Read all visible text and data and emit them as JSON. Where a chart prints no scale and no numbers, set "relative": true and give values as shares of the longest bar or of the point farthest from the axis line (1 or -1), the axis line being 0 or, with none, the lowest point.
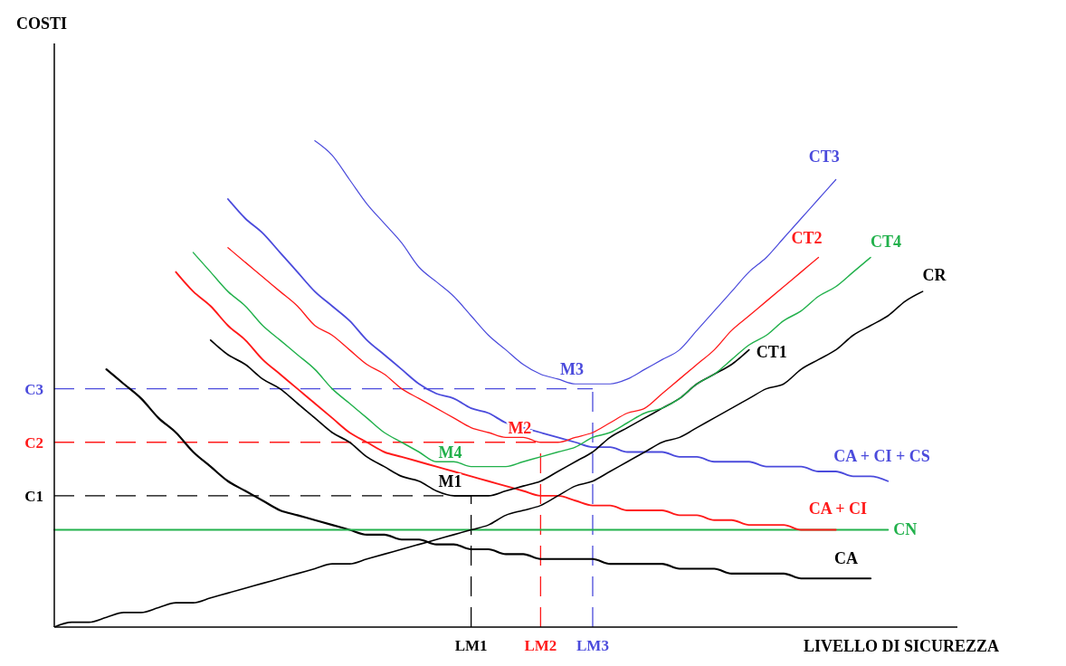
{
  "chart_data": {
    "type": "line",
    "relative": true,
    "marker": "none",
    "line_style": "solid",
    "xlabel": "LIVELLO DI SICUREZZA",
    "categories": [
      null,
      null,
      null,
      null,
      null,
      null,
      null,
      null,
      null,
      null,
      null,
      null,
      null,
      null,
      null,
      null,
      null,
      null,
      null,
      null,
      null,
      null,
      null,
      null,
      "LM1",
      null,
      null,
      null,
      "LM2",
      null,
      null,
      "LM3",
      null,
      null,
      null,
      null,
      null,
      null,
      null,
      null,
      null,
      null,
      null,
      null,
      null,
      null,
      null,
      null,
      null,
      null,
      null,
      null,
      null
    ],
    "series": [
      {
        "name": "CT3",
        "color": "#4b4bdc",
        "values": [
          null,
          null,
          null,
          null,
          null,
          null,
          null,
          null,
          null,
          null,
          null,
          null,
          null,
          null,
          null,
          1.0,
          0.97,
          0.92,
          0.87,
          0.83,
          0.79,
          0.74,
          0.71,
          0.68,
          0.64,
          0.6,
          0.57,
          0.54,
          0.52,
          0.51,
          0.5,
          0.5,
          0.5,
          0.51,
          0.53,
          0.55,
          0.57,
          0.61,
          0.65,
          0.69,
          0.73,
          0.76,
          0.8,
          0.84,
          0.88,
          0.92,
          null,
          null,
          null,
          null,
          null,
          null,
          null
        ]
      },
      {
        "name": "CT2",
        "color": "#ff1a1a",
        "values": [
          null,
          null,
          null,
          null,
          null,
          null,
          null,
          null,
          null,
          null,
          0.78,
          0.75,
          0.72,
          0.69,
          0.66,
          0.62,
          0.6,
          0.57,
          0.54,
          0.52,
          0.49,
          0.47,
          0.45,
          0.43,
          0.41,
          0.4,
          0.39,
          0.39,
          0.38,
          0.38,
          0.39,
          0.4,
          0.42,
          0.44,
          0.45,
          0.48,
          0.51,
          0.54,
          0.57,
          0.61,
          0.64,
          0.67,
          0.7,
          0.73,
          0.76,
          null,
          null,
          null,
          null,
          null,
          null,
          null,
          null
        ]
      },
      {
        "name": "CT4",
        "color": "#22b14c",
        "values": [
          null,
          null,
          null,
          null,
          null,
          null,
          null,
          null,
          0.77,
          0.73,
          0.69,
          0.66,
          0.62,
          0.59,
          0.56,
          0.53,
          0.49,
          0.46,
          0.43,
          0.4,
          0.38,
          0.36,
          0.34,
          0.34,
          0.33,
          0.33,
          0.33,
          0.34,
          0.35,
          0.36,
          0.37,
          0.39,
          0.4,
          0.42,
          0.44,
          0.45,
          0.47,
          0.5,
          0.52,
          0.55,
          0.58,
          0.6,
          0.63,
          0.65,
          0.68,
          0.7,
          0.73,
          0.76,
          null,
          null,
          null,
          null,
          null
        ]
      },
      {
        "name": "CR",
        "color": "#000000",
        "values": [
          0,
          0.01,
          0.01,
          0.02,
          0.03,
          0.03,
          0.04,
          0.05,
          0.05,
          0.06,
          0.07,
          0.08,
          0.09,
          0.1,
          0.11,
          0.12,
          0.13,
          0.13,
          0.14,
          0.15,
          0.16,
          0.17,
          0.18,
          0.19,
          0.2,
          0.21,
          0.23,
          0.24,
          0.25,
          0.27,
          0.29,
          0.3,
          0.32,
          0.34,
          0.36,
          0.38,
          0.39,
          0.41,
          0.43,
          0.45,
          0.47,
          0.49,
          0.5,
          0.53,
          0.55,
          0.57,
          0.6,
          0.62,
          0.64,
          0.67,
          0.69,
          null,
          null
        ]
      },
      {
        "name": "CT1",
        "color": "#000000",
        "values": [
          null,
          null,
          null,
          null,
          null,
          null,
          null,
          null,
          null,
          0.59,
          0.56,
          0.54,
          0.51,
          0.49,
          0.46,
          0.43,
          0.4,
          0.38,
          0.35,
          0.33,
          0.31,
          0.3,
          0.28,
          0.27,
          0.27,
          0.27,
          0.28,
          0.29,
          0.3,
          0.32,
          0.34,
          0.36,
          0.39,
          0.41,
          0.43,
          0.45,
          0.47,
          0.5,
          0.52,
          0.54,
          0.57,
          null,
          null,
          null,
          null,
          null,
          null,
          null,
          null,
          null,
          null,
          null,
          null
        ]
      },
      {
        "name": "CA + CI + CS",
        "color": "#4b4bdc",
        "values": [
          null,
          null,
          null,
          null,
          null,
          null,
          null,
          null,
          null,
          null,
          0.88,
          0.84,
          0.81,
          0.77,
          0.73,
          0.69,
          0.66,
          0.63,
          0.59,
          0.56,
          0.53,
          0.5,
          0.48,
          0.47,
          0.45,
          0.44,
          0.42,
          0.41,
          0.4,
          0.39,
          0.38,
          0.37,
          0.37,
          0.36,
          0.36,
          0.36,
          0.35,
          0.35,
          0.34,
          0.34,
          0.34,
          0.33,
          0.33,
          0.33,
          0.32,
          0.32,
          0.31,
          0.31,
          0.3,
          null,
          null,
          null,
          null
        ]
      },
      {
        "name": "CA + CI",
        "color": "#ff1a1a",
        "values": [
          null,
          null,
          null,
          null,
          null,
          null,
          null,
          0.73,
          0.69,
          0.66,
          0.62,
          0.59,
          0.55,
          0.52,
          0.49,
          0.46,
          0.43,
          0.4,
          0.38,
          0.36,
          0.35,
          0.34,
          0.33,
          0.32,
          0.31,
          0.3,
          0.29,
          0.28,
          0.27,
          0.27,
          0.26,
          0.25,
          0.25,
          0.24,
          0.24,
          0.24,
          0.23,
          0.23,
          0.22,
          0.22,
          0.21,
          0.21,
          0.21,
          0.2,
          0.2,
          0.2,
          null,
          null,
          null,
          null,
          null,
          null,
          null
        ]
      },
      {
        "name": "CN",
        "color": "#22b14c",
        "values": [
          0.2,
          0.2,
          0.2,
          0.2,
          0.2,
          0.2,
          0.2,
          0.2,
          0.2,
          0.2,
          0.2,
          0.2,
          0.2,
          0.2,
          0.2,
          0.2,
          0.2,
          0.2,
          0.2,
          0.2,
          0.2,
          0.2,
          0.2,
          0.2,
          0.2,
          0.2,
          0.2,
          0.2,
          0.2,
          0.2,
          0.2,
          0.2,
          0.2,
          0.2,
          0.2,
          0.2,
          0.2,
          0.2,
          0.2,
          0.2,
          0.2,
          0.2,
          0.2,
          0.2,
          0.2,
          0.2,
          0.2,
          0.2,
          0.2,
          null,
          null,
          null,
          null
        ]
      },
      {
        "name": "CA",
        "color": "#000000",
        "values": [
          null,
          null,
          null,
          0.53,
          0.5,
          0.47,
          0.43,
          0.4,
          0.36,
          0.33,
          0.3,
          0.28,
          0.26,
          0.24,
          0.23,
          0.22,
          0.21,
          0.2,
          0.19,
          0.19,
          0.18,
          0.18,
          0.17,
          0.17,
          0.16,
          0.16,
          0.15,
          0.15,
          0.14,
          0.14,
          0.14,
          0.14,
          0.13,
          0.13,
          0.13,
          0.13,
          0.12,
          0.12,
          0.12,
          0.11,
          0.11,
          0.11,
          0.11,
          0.1,
          0.1,
          0.1,
          0.1,
          0.1,
          null,
          null,
          null,
          null,
          null
        ]
      }
    ],
    "ref_lines": [
      {
        "axis": "y",
        "value": 0.27,
        "label": "C1",
        "color": "#000000",
        "line_style": "dashed"
      },
      {
        "axis": "y",
        "value": 0.38,
        "label": "C2",
        "color": "#ff1a1a",
        "line_style": "dashed"
      },
      {
        "axis": "y",
        "value": 0.49,
        "label": "C3",
        "color": "#4b4bdc",
        "line_style": "dashed"
      },
      {
        "axis": "x",
        "value": "LM1",
        "color": "#000000",
        "line_style": "dashed"
      },
      {
        "axis": "x",
        "value": "LM2",
        "color": "#ff1a1a",
        "line_style": "dashed"
      },
      {
        "axis": "x",
        "value": "LM3",
        "color": "#4b4bdc",
        "line_style": "dashed"
      }
    ],
    "annotations": [
      "COSTI",
      {
        "text": "M1",
        "x": "LM1",
        "y": 0.27
      },
      {
        "text": "M2",
        "x": "LM2",
        "y": 0.38
      },
      {
        "text": "M3",
        "x": "LM3",
        "y": 0.5
      },
      {
        "text": "M4",
        "y": 0.33
      }
    ]
  }
}
